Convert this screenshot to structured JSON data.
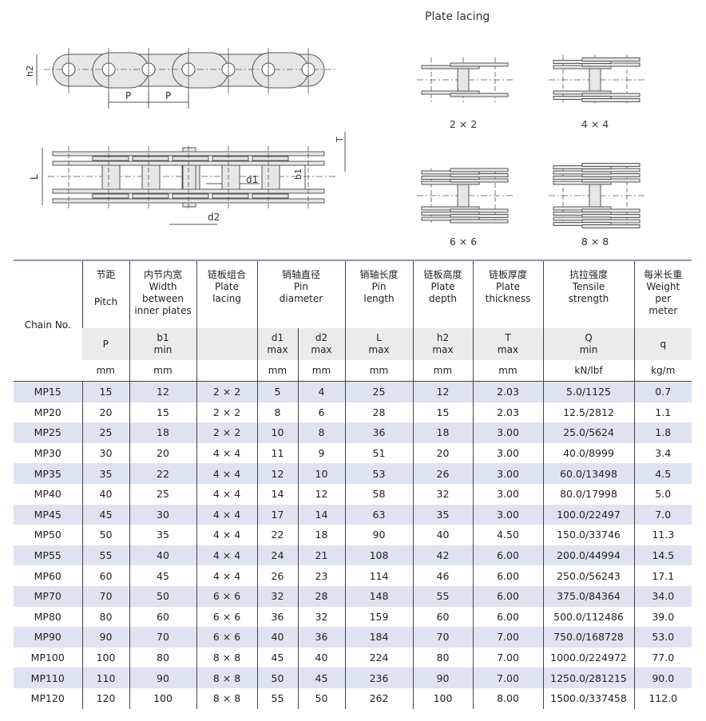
{
  "diagram": {
    "labels": {
      "h2": "h2",
      "P": "P",
      "L": "L",
      "T": "T",
      "d1": "d1",
      "b1": "b1",
      "d2": "d2"
    },
    "lacing_title": "Plate lacing",
    "lacings": [
      {
        "label": "2 × 2",
        "plates": 1
      },
      {
        "label": "4 × 4",
        "plates": 2
      },
      {
        "label": "6 × 6",
        "plates": 3
      },
      {
        "label": "8 × 8",
        "plates": 4
      }
    ]
  },
  "table": {
    "header": {
      "chain": "Chain No.",
      "cols": [
        {
          "cn": "节距",
          "en": [
            "Pitch"
          ],
          "sym": "P",
          "sub": "",
          "unit": "mm"
        },
        {
          "cn": "内节内宽",
          "en": [
            "Width",
            "between",
            "inner plates"
          ],
          "sym": "b1",
          "sub": "min",
          "unit": "mm"
        },
        {
          "cn": "链板组合",
          "en": [
            "Plate",
            "lacing"
          ],
          "sym": "",
          "sub": "",
          "unit": ""
        },
        {
          "cn": "销轴直径",
          "en": [
            "Pin",
            "diameter"
          ]
        },
        {
          "cn": "销轴长度",
          "en": [
            "Pin",
            "length"
          ],
          "sym": "L",
          "sub": "max",
          "unit": "mm"
        },
        {
          "cn": "链板高度",
          "en": [
            "Plate",
            "depth"
          ],
          "sym": "h2",
          "sub": "max",
          "unit": "mm"
        },
        {
          "cn": "链板厚度",
          "en": [
            "Plate",
            "thickness"
          ],
          "sym": "T",
          "sub": "max",
          "unit": "mm"
        },
        {
          "cn": "抗拉强度",
          "en": [
            "Tensile",
            "strength"
          ],
          "sym": "Q",
          "sub": "min",
          "unit": "kN/lbf"
        },
        {
          "cn": "每米长重",
          "en": [
            "Weight",
            "per",
            "meter"
          ],
          "sym": "q",
          "sub": "",
          "unit": "kg/m"
        }
      ],
      "pin_sub": [
        {
          "sym": "d1",
          "sub": "max",
          "unit": "mm"
        },
        {
          "sym": "d2",
          "sub": "max",
          "unit": "mm"
        }
      ]
    },
    "rows": [
      [
        "MP15",
        "15",
        "12",
        "2 × 2",
        "5",
        "4",
        "25",
        "12",
        "2.03",
        "5.0/1125",
        "0.7"
      ],
      [
        "MP20",
        "20",
        "15",
        "2 × 2",
        "8",
        "6",
        "28",
        "15",
        "2.03",
        "12.5/2812",
        "1.1"
      ],
      [
        "MP25",
        "25",
        "18",
        "2 × 2",
        "10",
        "8",
        "36",
        "18",
        "3.00",
        "25.0/5624",
        "1.8"
      ],
      [
        "MP30",
        "30",
        "20",
        "4 × 4",
        "11",
        "9",
        "51",
        "20",
        "3.00",
        "40.0/8999",
        "3.4"
      ],
      [
        "MP35",
        "35",
        "22",
        "4 × 4",
        "12",
        "10",
        "53",
        "26",
        "3.00",
        "60.0/13498",
        "4.5"
      ],
      [
        "MP40",
        "40",
        "25",
        "4 × 4",
        "14",
        "12",
        "58",
        "32",
        "3.00",
        "80.0/17998",
        "5.0"
      ],
      [
        "MP45",
        "45",
        "30",
        "4 × 4",
        "17",
        "14",
        "63",
        "35",
        "3.00",
        "100.0/22497",
        "7.0"
      ],
      [
        "MP50",
        "50",
        "35",
        "4 × 4",
        "22",
        "18",
        "90",
        "40",
        "4.50",
        "150.0/33746",
        "11.3"
      ],
      [
        "MP55",
        "55",
        "40",
        "4 × 4",
        "24",
        "21",
        "108",
        "42",
        "6.00",
        "200.0/44994",
        "14.5"
      ],
      [
        "MP60",
        "60",
        "45",
        "4 × 4",
        "26",
        "23",
        "114",
        "46",
        "6.00",
        "250.0/56243",
        "17.1"
      ],
      [
        "MP70",
        "70",
        "50",
        "6 × 6",
        "32",
        "28",
        "148",
        "55",
        "6.00",
        "375.0/84364",
        "34.0"
      ],
      [
        "MP80",
        "80",
        "60",
        "6 × 6",
        "36",
        "32",
        "159",
        "60",
        "6.00",
        "500.0/112486",
        "39.0"
      ],
      [
        "MP90",
        "90",
        "70",
        "6 × 6",
        "40",
        "36",
        "184",
        "70",
        "7.00",
        "750.0/168728",
        "53.0"
      ],
      [
        "MP100",
        "100",
        "80",
        "8 × 8",
        "45",
        "40",
        "224",
        "80",
        "7.00",
        "1000.0/224972",
        "77.0"
      ],
      [
        "MP110",
        "110",
        "90",
        "8 × 8",
        "50",
        "45",
        "236",
        "90",
        "7.00",
        "1250.0/281215",
        "90.0"
      ],
      [
        "MP120",
        "120",
        "100",
        "8 × 8",
        "55",
        "50",
        "262",
        "100",
        "8.00",
        "1500.0/337458",
        "112.0"
      ]
    ]
  }
}
